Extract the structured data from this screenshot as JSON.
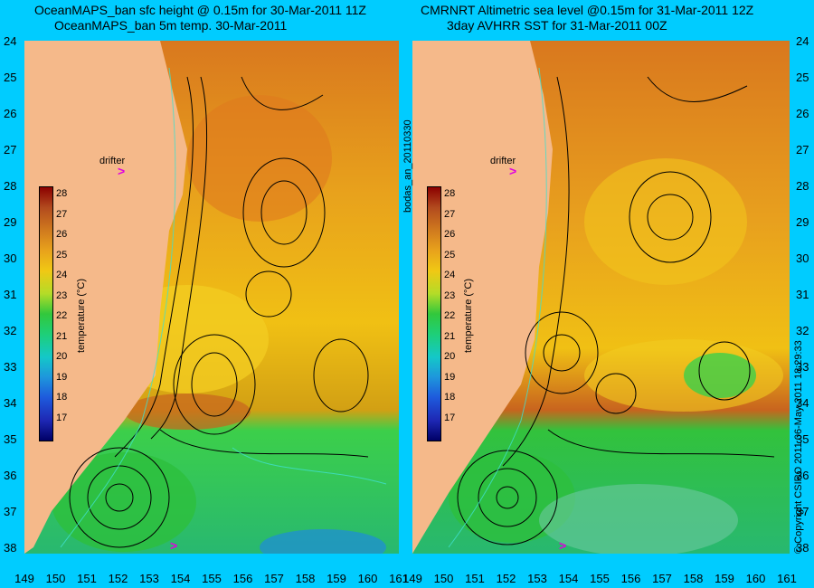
{
  "left_panel": {
    "title_line1": "OceanMAPS_ban sfc height @ 0.15m for 30-Mar-2011 11Z",
    "title_line2": "OceanMAPS_ban 5m temp. 30-Mar-2011"
  },
  "right_panel": {
    "title_line1": "CMRNRT Altimetric sea level  @0.15m  for 31-Mar-2011 12Z",
    "title_line2": "3day AVHRR SST for 31-Mar-2011 00Z"
  },
  "latitude_labels": [
    "24",
    "25",
    "26",
    "27",
    "28",
    "29",
    "30",
    "31",
    "32",
    "33",
    "34",
    "35",
    "36",
    "37",
    "38"
  ],
  "longitude_labels": [
    "149",
    "150",
    "151",
    "152",
    "153",
    "154",
    "155",
    "156",
    "157",
    "158",
    "159",
    "160",
    "161"
  ],
  "colorbar": {
    "title": "temperature (°C)",
    "ticks": [
      "28",
      "27",
      "26",
      "25",
      "24",
      "23",
      "22",
      "21",
      "20",
      "19",
      "18",
      "17"
    ]
  },
  "annotations": {
    "drifter_label": "drifter",
    "run_id": "bodas_an_20110330",
    "copyright": "© Copyright CSIRO 2011   06-May-2011 18:29:33"
  },
  "colors": {
    "background": "#00ccff",
    "land": "#f5b98a",
    "warm": "#c8641e",
    "mid": "#f0c014",
    "cool": "#2ecc50",
    "cold": "#1e8cdc",
    "drifter": "#e000e0"
  }
}
